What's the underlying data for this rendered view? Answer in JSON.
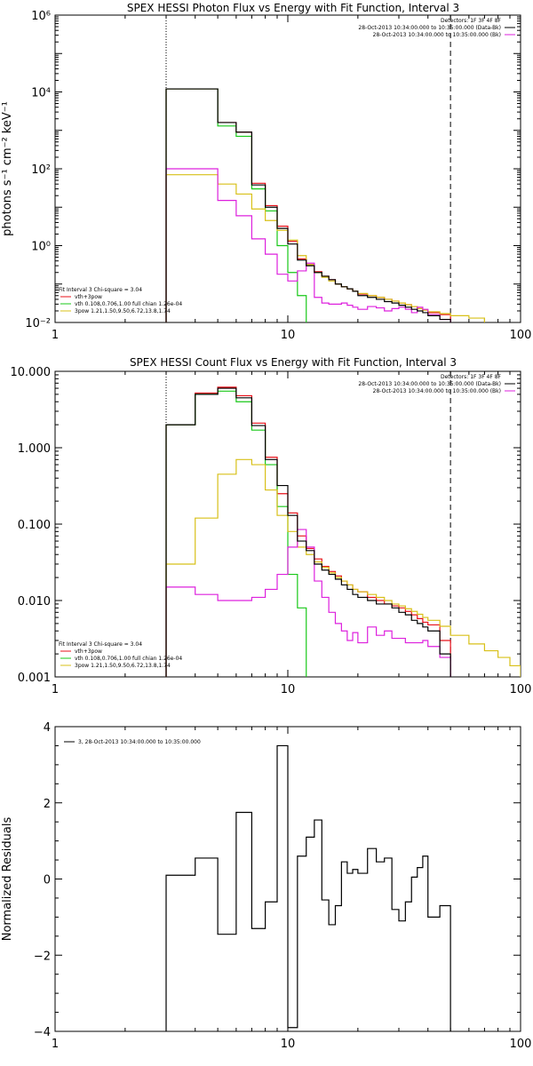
{
  "chart_data": [
    {
      "type": "line",
      "title": "SPEX HESSI Photon Flux vs Energy with Fit Function, Interval 3",
      "ylabel": "photons s⁻¹ cm⁻² keV⁻¹",
      "xlabel": "",
      "xscale": "log",
      "yscale": "log",
      "xlim": [
        1,
        100
      ],
      "ylim": [
        0.01,
        1000000
      ],
      "x_ticks": [
        {
          "v": 1,
          "label": "1"
        },
        {
          "v": 10,
          "label": "10"
        },
        {
          "v": 100,
          "label": "100"
        }
      ],
      "y_ticks": [
        {
          "v": 0.01,
          "label": "10⁻²"
        },
        {
          "v": 1,
          "label": "10⁰"
        },
        {
          "v": 100,
          "label": "10²"
        },
        {
          "v": 10000,
          "label": "10⁴"
        },
        {
          "v": 1000000,
          "label": "10⁶"
        }
      ],
      "legend_right": [
        "Detectors: 1F 3F 4F 8F",
        "28-Oct-2013 10:34:00.000 to 10:35:00.000 (Data-Bk)",
        "28-Oct-2013 10:34:00.000 to 10:35:00.000 (Bk)"
      ],
      "legend_left": [
        "Fit Interval 3   Chi-square = 3.04",
        "vth+3pow",
        "vth 0.108,0.706,1.00  full chian 1.26e-04",
        "3pow 1.21,1.50,9.50,6.72,13.8,1.74"
      ],
      "vlines": [
        {
          "x": 3,
          "style": "dotted"
        },
        {
          "x": 50,
          "style": "dashed"
        }
      ],
      "series": [
        {
          "role": "data",
          "color": "#000000",
          "edges": [
            3,
            4,
            5,
            6,
            7,
            8,
            9,
            10,
            11,
            12,
            13,
            14,
            15,
            16,
            17,
            18,
            19,
            20,
            22,
            24,
            26,
            28,
            30,
            32,
            34,
            36,
            38,
            40,
            45,
            50
          ],
          "values": [
            12000,
            12000,
            1600,
            900,
            38,
            10,
            2.8,
            1.1,
            0.42,
            0.3,
            0.2,
            0.16,
            0.13,
            0.1,
            0.085,
            0.075,
            0.065,
            0.05,
            0.045,
            0.04,
            0.035,
            0.032,
            0.028,
            0.025,
            0.022,
            0.02,
            0.018,
            0.015,
            0.012
          ]
        },
        {
          "role": "vth+3pow",
          "color": "#e8101a",
          "edges": [
            3,
            4,
            5,
            6,
            7,
            8,
            9,
            10,
            11,
            12,
            13,
            14,
            15,
            16,
            17,
            18,
            19,
            20,
            22,
            24,
            26,
            28,
            30,
            32,
            34,
            36,
            38,
            40,
            45,
            50
          ],
          "values": [
            12000,
            12000,
            1600,
            900,
            42,
            11,
            3.2,
            1.3,
            0.45,
            0.32,
            0.21,
            0.16,
            0.13,
            0.1,
            0.085,
            0.075,
            0.065,
            0.055,
            0.05,
            0.045,
            0.04,
            0.036,
            0.032,
            0.029,
            0.026,
            0.023,
            0.021,
            0.018,
            0.016
          ]
        },
        {
          "role": "vth",
          "color": "#18c818",
          "edges": [
            3,
            4,
            5,
            6,
            7,
            8,
            9,
            10,
            11,
            12
          ],
          "values": [
            12000,
            12000,
            1300,
            700,
            30,
            8,
            1.0,
            0.2,
            0.05
          ]
        },
        {
          "role": "3pow",
          "color": "#d8c018",
          "edges": [
            3,
            4,
            5,
            6,
            7,
            8,
            9,
            10,
            11,
            12,
            13,
            14,
            15,
            16,
            17,
            18,
            19,
            20,
            22,
            24,
            26,
            28,
            30,
            32,
            34,
            36,
            38,
            40,
            45,
            50,
            60,
            70
          ],
          "values": [
            70,
            70,
            40,
            22,
            9,
            4.5,
            2.5,
            1.4,
            0.55,
            0.32,
            0.2,
            0.15,
            0.12,
            0.1,
            0.085,
            0.075,
            0.065,
            0.057,
            0.05,
            0.045,
            0.04,
            0.036,
            0.032,
            0.029,
            0.026,
            0.023,
            0.021,
            0.019,
            0.017,
            0.015,
            0.013
          ]
        },
        {
          "role": "background",
          "color": "#dd20dd",
          "edges": [
            3,
            4,
            5,
            6,
            7,
            8,
            9,
            10,
            11,
            12,
            13,
            14,
            15,
            16,
            17,
            18,
            19,
            20,
            22,
            24,
            26,
            28,
            30,
            32,
            34,
            36,
            38,
            40,
            45,
            50
          ],
          "values": [
            100,
            100,
            15,
            6,
            1.5,
            0.6,
            0.18,
            0.12,
            0.22,
            0.35,
            0.045,
            0.032,
            0.03,
            0.03,
            0.032,
            0.028,
            0.025,
            0.022,
            0.026,
            0.024,
            0.02,
            0.023,
            0.025,
            0.022,
            0.018,
            0.025,
            0.022,
            0.016,
            0.012
          ]
        }
      ]
    },
    {
      "type": "line",
      "title": "SPEX HESSI Count Flux vs Energy with Fit Function, Interval 3",
      "ylabel": "",
      "xlabel": "",
      "xscale": "log",
      "yscale": "log",
      "xlim": [
        1,
        100
      ],
      "ylim": [
        0.001,
        10
      ],
      "x_ticks": [
        {
          "v": 1,
          "label": "1"
        },
        {
          "v": 10,
          "label": "10"
        },
        {
          "v": 100,
          "label": "100"
        }
      ],
      "y_ticks": [
        {
          "v": 0.001,
          "label": "0.001"
        },
        {
          "v": 0.01,
          "label": "0.010"
        },
        {
          "v": 0.1,
          "label": "0.100"
        },
        {
          "v": 1,
          "label": "1.000"
        },
        {
          "v": 10,
          "label": "10.000"
        }
      ],
      "legend_right": [
        "Detectors: 1F 3F 4F 8F",
        "28-Oct-2013 10:34:00.000 to 10:35:00.000 (Data-Bk)",
        "28-Oct-2013 10:34:00.000 to 10:35:00.000 (Bk)"
      ],
      "legend_left": [
        "Fit Interval 3   Chi-square = 3.04",
        "vth+3pow",
        "vth 0.108,0.706,1.00  full chian 1.26e-04",
        "3pow 1.21,1.50,9.50,6.72,13.8,1.74"
      ],
      "vlines": [
        {
          "x": 3,
          "style": "dotted"
        },
        {
          "x": 50,
          "style": "dashed"
        }
      ],
      "series": [
        {
          "role": "data",
          "color": "#000000",
          "edges": [
            3,
            4,
            5,
            6,
            7,
            8,
            9,
            10,
            11,
            12,
            13,
            14,
            15,
            16,
            17,
            18,
            19,
            20,
            22,
            24,
            26,
            28,
            30,
            32,
            34,
            36,
            38,
            40,
            45,
            50
          ],
          "values": [
            2.0,
            5.0,
            6.0,
            4.5,
            1.95,
            0.7,
            0.32,
            0.13,
            0.06,
            0.045,
            0.03,
            0.025,
            0.022,
            0.019,
            0.016,
            0.014,
            0.012,
            0.011,
            0.01,
            0.009,
            0.009,
            0.008,
            0.007,
            0.0065,
            0.0055,
            0.005,
            0.0045,
            0.004,
            0.002
          ]
        },
        {
          "role": "vth+3pow",
          "color": "#e8101a",
          "edges": [
            3,
            4,
            5,
            6,
            7,
            8,
            9,
            10,
            11,
            12,
            13,
            14,
            15,
            16,
            17,
            18,
            19,
            20,
            22,
            24,
            26,
            28,
            30,
            32,
            34,
            36,
            38,
            40,
            45,
            50
          ],
          "values": [
            2.0,
            5.2,
            6.2,
            4.8,
            2.1,
            0.75,
            0.25,
            0.14,
            0.07,
            0.048,
            0.035,
            0.028,
            0.024,
            0.021,
            0.018,
            0.016,
            0.014,
            0.013,
            0.011,
            0.01,
            0.009,
            0.0085,
            0.008,
            0.0072,
            0.0065,
            0.0058,
            0.0052,
            0.0048,
            0.003
          ]
        },
        {
          "role": "vth",
          "color": "#18c818",
          "edges": [
            3,
            4,
            5,
            6,
            7,
            8,
            9,
            10,
            11,
            12
          ],
          "values": [
            2.0,
            5.0,
            5.5,
            4.0,
            1.7,
            0.6,
            0.17,
            0.022,
            0.008
          ]
        },
        {
          "role": "3pow",
          "color": "#d8c018",
          "edges": [
            3,
            4,
            5,
            6,
            7,
            8,
            9,
            10,
            11,
            12,
            13,
            14,
            15,
            16,
            17,
            18,
            19,
            20,
            22,
            24,
            26,
            28,
            30,
            32,
            34,
            36,
            38,
            40,
            45,
            50,
            60,
            70,
            80,
            90,
            100
          ],
          "values": [
            0.03,
            0.12,
            0.45,
            0.7,
            0.6,
            0.28,
            0.13,
            0.08,
            0.05,
            0.04,
            0.032,
            0.027,
            0.023,
            0.02,
            0.018,
            0.016,
            0.014,
            0.013,
            0.012,
            0.011,
            0.01,
            0.009,
            0.0085,
            0.0078,
            0.0072,
            0.0066,
            0.006,
            0.0055,
            0.0046,
            0.0035,
            0.0027,
            0.0022,
            0.0018,
            0.0014
          ]
        },
        {
          "role": "background",
          "color": "#dd20dd",
          "edges": [
            3,
            4,
            5,
            6,
            7,
            8,
            9,
            10,
            11,
            12,
            13,
            14,
            15,
            16,
            17,
            18,
            19,
            20,
            22,
            24,
            26,
            28,
            30,
            32,
            34,
            36,
            38,
            40,
            45,
            50
          ],
          "values": [
            0.015,
            0.012,
            0.01,
            0.01,
            0.011,
            0.014,
            0.022,
            0.05,
            0.085,
            0.05,
            0.018,
            0.011,
            0.007,
            0.005,
            0.004,
            0.003,
            0.0038,
            0.0028,
            0.0045,
            0.0035,
            0.004,
            0.0032,
            0.0032,
            0.0028,
            0.0028,
            0.0028,
            0.003,
            0.0025,
            0.0018
          ]
        }
      ]
    },
    {
      "type": "line",
      "title": "",
      "ylabel": "Normalized Residuals",
      "xlabel": "",
      "xscale": "log",
      "yscale": "linear",
      "xlim": [
        1,
        100
      ],
      "ylim": [
        -4,
        4
      ],
      "x_ticks": [
        {
          "v": 1,
          "label": "1"
        },
        {
          "v": 10,
          "label": "10"
        },
        {
          "v": 100,
          "label": "100"
        }
      ],
      "y_ticks": [
        {
          "v": -4,
          "label": "−4"
        },
        {
          "v": -2,
          "label": "−2"
        },
        {
          "v": 0,
          "label": "0"
        },
        {
          "v": 2,
          "label": "2"
        },
        {
          "v": 4,
          "label": "4"
        }
      ],
      "legend_left": [
        "3, 28-Oct-2013 10:34:00.000 to 10:35:00.000"
      ],
      "series": [
        {
          "role": "residuals",
          "color": "#000000",
          "edges": [
            3,
            4,
            5,
            6,
            7,
            8,
            9,
            10,
            11,
            12,
            13,
            14,
            15,
            16,
            17,
            18,
            19,
            20,
            22,
            24,
            26,
            28,
            30,
            32,
            34,
            36,
            38,
            40,
            45,
            50
          ],
          "values": [
            0.1,
            0.55,
            -1.45,
            1.75,
            -1.3,
            -0.6,
            3.5,
            -3.9,
            0.6,
            1.1,
            1.55,
            -0.55,
            -1.2,
            -0.7,
            0.45,
            0.15,
            0.25,
            0.15,
            0.8,
            0.45,
            0.55,
            -0.8,
            -1.1,
            -0.6,
            0.05,
            0.3,
            0.6,
            -1.0,
            -0.7
          ]
        }
      ]
    }
  ]
}
